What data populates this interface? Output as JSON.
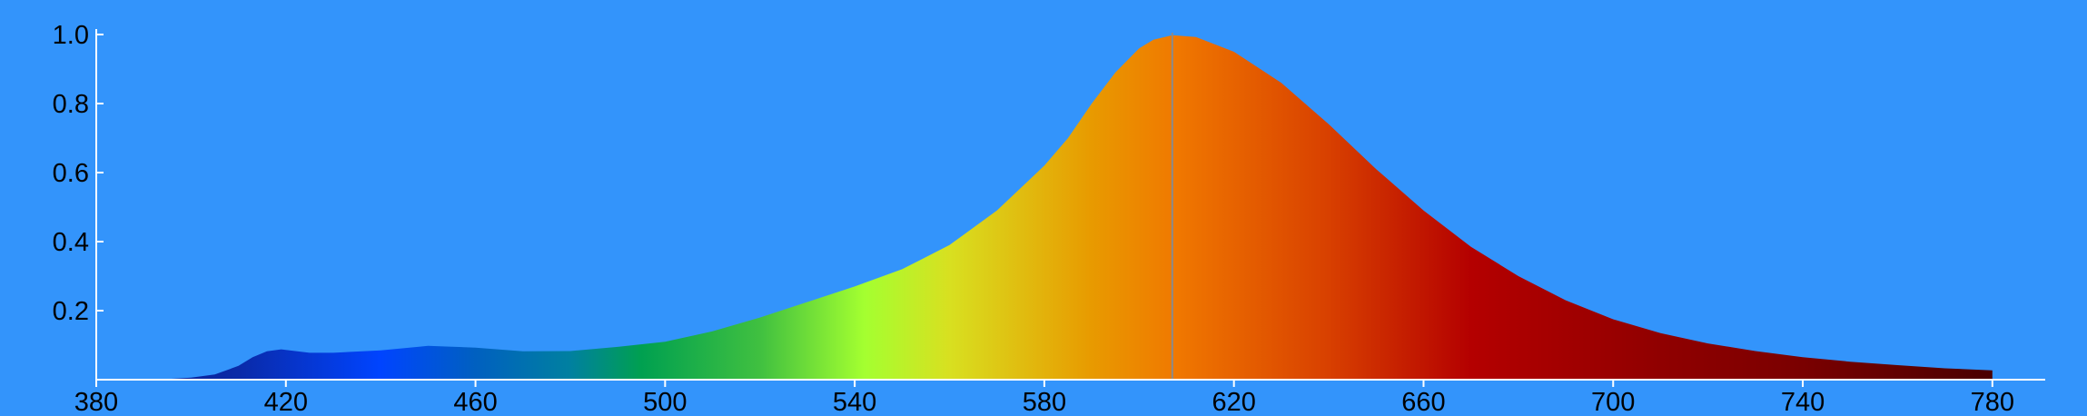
{
  "chart_data": {
    "type": "area",
    "title": "",
    "xlabel": "",
    "ylabel": "",
    "xlim": [
      380,
      790
    ],
    "ylim": [
      0,
      1.0
    ],
    "x_ticks": [
      {
        "value": 380,
        "label": "380"
      },
      {
        "value": 420,
        "label": "420"
      },
      {
        "value": 460,
        "label": "460"
      },
      {
        "value": 500,
        "label": "500"
      },
      {
        "value": 540,
        "label": "540"
      },
      {
        "value": 580,
        "label": "580"
      },
      {
        "value": 620,
        "label": "620"
      },
      {
        "value": 660,
        "label": "660"
      },
      {
        "value": 700,
        "label": "700"
      },
      {
        "value": 740,
        "label": "740"
      },
      {
        "value": 780,
        "label": "780"
      }
    ],
    "y_ticks": [
      {
        "value": 0.2,
        "label": "0.2"
      },
      {
        "value": 0.4,
        "label": "0.4"
      },
      {
        "value": 0.6,
        "label": "0.6"
      },
      {
        "value": 0.8,
        "label": "0.8"
      },
      {
        "value": 1.0,
        "label": "1.0"
      }
    ],
    "grid": false,
    "peak_marker_x": 607,
    "colors": {
      "background": "#3394fb",
      "axis": "#ffffff",
      "peak_line": "#8a8a8a"
    },
    "fill_gradient": [
      {
        "x": 380,
        "color": "#0a1a8a"
      },
      {
        "x": 410,
        "color": "#0a2aa8"
      },
      {
        "x": 440,
        "color": "#0044ff"
      },
      {
        "x": 460,
        "color": "#0060c0"
      },
      {
        "x": 480,
        "color": "#0080a0"
      },
      {
        "x": 495,
        "color": "#00a050"
      },
      {
        "x": 520,
        "color": "#40c040"
      },
      {
        "x": 542,
        "color": "#a4ff30"
      },
      {
        "x": 560,
        "color": "#d8e020"
      },
      {
        "x": 590,
        "color": "#e89a00"
      },
      {
        "x": 608,
        "color": "#f07800"
      },
      {
        "x": 640,
        "color": "#d84000"
      },
      {
        "x": 670,
        "color": "#b40000"
      },
      {
        "x": 710,
        "color": "#900000"
      },
      {
        "x": 740,
        "color": "#7a0000"
      },
      {
        "x": 780,
        "color": "#4a0000"
      }
    ],
    "series": [
      {
        "x": [
          390,
          395,
          400,
          405,
          410,
          413,
          416,
          419,
          422,
          425,
          430,
          440,
          450,
          460,
          470,
          480,
          490,
          500,
          510,
          520,
          530,
          540,
          550,
          560,
          570,
          580,
          585,
          590,
          595,
          600,
          603,
          607,
          612,
          620,
          630,
          640,
          650,
          660,
          670,
          680,
          690,
          700,
          710,
          720,
          730,
          740,
          750,
          760,
          770,
          780
        ],
        "values": [
          0.0,
          0.002,
          0.006,
          0.015,
          0.04,
          0.065,
          0.082,
          0.088,
          0.083,
          0.078,
          0.078,
          0.085,
          0.098,
          0.093,
          0.082,
          0.083,
          0.095,
          0.11,
          0.14,
          0.18,
          0.225,
          0.27,
          0.32,
          0.39,
          0.49,
          0.62,
          0.7,
          0.8,
          0.89,
          0.96,
          0.985,
          0.998,
          0.993,
          0.95,
          0.86,
          0.74,
          0.61,
          0.49,
          0.385,
          0.3,
          0.23,
          0.175,
          0.135,
          0.105,
          0.083,
          0.065,
          0.052,
          0.042,
          0.033,
          0.027
        ]
      }
    ]
  }
}
